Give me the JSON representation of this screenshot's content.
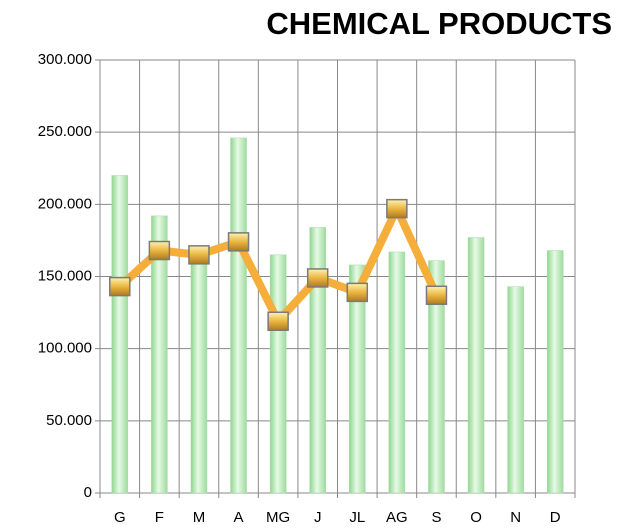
{
  "chart_data": {
    "type": "bar_line",
    "title": "CHEMICAL PRODUCTS",
    "categories": [
      "G",
      "F",
      "M",
      "A",
      "MG",
      "J",
      "JL",
      "AG",
      "S",
      "O",
      "N",
      "D"
    ],
    "series": [
      {
        "type": "bar",
        "color": "#c6efc6",
        "values": [
          220000,
          192000,
          164000,
          246000,
          165000,
          184000,
          158000,
          167000,
          161000,
          177000,
          143000,
          168000
        ]
      },
      {
        "type": "line",
        "color": "#f5ae3a",
        "values": [
          143000,
          168000,
          165000,
          174000,
          119000,
          149000,
          139000,
          197000,
          137000,
          null,
          null,
          null
        ]
      }
    ],
    "ylim": [
      0,
      300000
    ],
    "yticks": [
      0,
      {
        "value": 50000,
        "label": "50.000"
      },
      {
        "value": 100000,
        "label": "100.000"
      },
      {
        "value": 150000,
        "label": "150.000"
      },
      {
        "value": 200000,
        "label": "200.000"
      },
      {
        "value": 250000,
        "label": "250.000"
      },
      {
        "value": 300000,
        "label": "300.000"
      }
    ],
    "grid": true
  }
}
